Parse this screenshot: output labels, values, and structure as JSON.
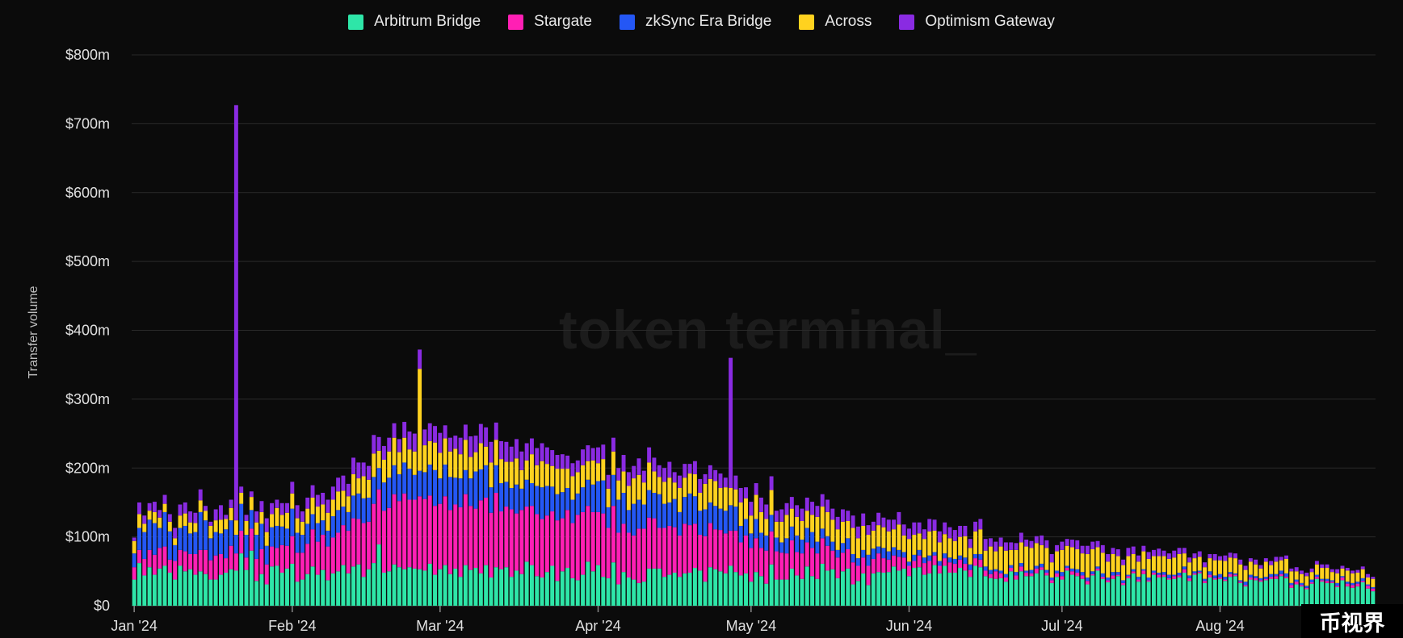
{
  "chart_data": {
    "type": "bar",
    "stacked": true,
    "ylabel": "Transfer volume",
    "ylim": [
      0,
      800
    ],
    "y_ticks": [
      "$0",
      "$100m",
      "$200m",
      "$300m",
      "$400m",
      "$500m",
      "$600m",
      "$700m",
      "$800m"
    ],
    "x_ticks": [
      "Jan '24",
      "Feb '24",
      "Mar '24",
      "Apr '24",
      "May '24",
      "Jun '24",
      "Jul '24",
      "Aug '24"
    ],
    "x_range": [
      "2024-01-01",
      "2024-08-31"
    ],
    "units": "USD millions",
    "grid": true,
    "legend_position": "top-center",
    "series": [
      {
        "name": "Arbitrum Bridge",
        "color": "#2ee6a8",
        "values": [
          38,
          62,
          44,
          56,
          45,
          54,
          58,
          48,
          38,
          58,
          50,
          53,
          45,
          50,
          46,
          38,
          38,
          45,
          48,
          53,
          51,
          76,
          52,
          80,
          36,
          46,
          31,
          57,
          58,
          48,
          54,
          61,
          35,
          38,
          46,
          57,
          45,
          52,
          37,
          47,
          50,
          59,
          47,
          57,
          60,
          42,
          53,
          62,
          89,
          48,
          50,
          60,
          56,
          53,
          56,
          54,
          53,
          51,
          61,
          45,
          53,
          59,
          46,
          54,
          42,
          59,
          52,
          55,
          47,
          59,
          41,
          56,
          53,
          56,
          42,
          51,
          46,
          64,
          59,
          43,
          41,
          49,
          58,
          36,
          50,
          55,
          40,
          37,
          45,
          64,
          50,
          59,
          42,
          40,
          63,
          31,
          49,
          41,
          38,
          33,
          35,
          54,
          54,
          54,
          42,
          45,
          48,
          42,
          47,
          48,
          55,
          51,
          35,
          56,
          53,
          50,
          47,
          58,
          49,
          44,
          47,
          35,
          49,
          43,
          32,
          60,
          38,
          38,
          38,
          54,
          44,
          39,
          57,
          43,
          39,
          61,
          51,
          53,
          40,
          50,
          54,
          31,
          36,
          47,
          30,
          47,
          49,
          48,
          49,
          57,
          51,
          54,
          43,
          55,
          56,
          45,
          47,
          59,
          47,
          58,
          48,
          48,
          55,
          51,
          42,
          58,
          56,
          43,
          40,
          39,
          40,
          35,
          50,
          38,
          50,
          43,
          43,
          47,
          52,
          44,
          33,
          42,
          38,
          51,
          45,
          43,
          39,
          31,
          44,
          51,
          39,
          34,
          39,
          43,
          30,
          40,
          47,
          35,
          46,
          35,
          45,
          41,
          42,
          38,
          39,
          41,
          48,
          36,
          45,
          47,
          33,
          41,
          38,
          39,
          36,
          42,
          43,
          33,
          28,
          38,
          37,
          35,
          37,
          39,
          39,
          43,
          40,
          26,
          31,
          28,
          24,
          32,
          39,
          35,
          33,
          33,
          27,
          37,
          28,
          26,
          28,
          34,
          25,
          21
        ]
      },
      {
        "name": "Stargate",
        "color": "#ff1fb4",
        "values": [
          18,
          19,
          24,
          25,
          29,
          30,
          28,
          19,
          27,
          23,
          29,
          22,
          30,
          31,
          35,
          28,
          35,
          30,
          21,
          34,
          25,
          33,
          18,
          32,
          32,
          36,
          29,
          29,
          26,
          40,
          33,
          40,
          42,
          39,
          44,
          54,
          48,
          51,
          49,
          52,
          56,
          58,
          62,
          70,
          66,
          78,
          69,
          86,
          80,
          90,
          92,
          102,
          96,
          110,
          98,
          100,
          106,
          104,
          99,
          100,
          95,
          100,
          93,
          93,
          101,
          103,
          93,
          86,
          106,
          98,
          94,
          108,
          84,
          88,
          98,
          83,
          93,
          80,
          86,
          90,
          85,
          82,
          79,
          88,
          77,
          84,
          80,
          95,
          91,
          81,
          86,
          77,
          92,
          73,
          82,
          75,
          70,
          65,
          64,
          79,
          77,
          74,
          73,
          59,
          71,
          71,
          66,
          60,
          72,
          69,
          64,
          52,
          66,
          64,
          58,
          60,
          58,
          51,
          60,
          48,
          55,
          49,
          49,
          41,
          48,
          48,
          41,
          39,
          38,
          41,
          34,
          37,
          35,
          41,
          37,
          37,
          36,
          27,
          30,
          27,
          28,
          32,
          22,
          23,
          28,
          21,
          27,
          21,
          18,
          16,
          20,
          16,
          15,
          10,
          17,
          17,
          18,
          14,
          11,
          11,
          15,
          13,
          12,
          10,
          10,
          11,
          11,
          8,
          6,
          11,
          7,
          6,
          5,
          6,
          7,
          5,
          4,
          7,
          4,
          4,
          4,
          5,
          5,
          4,
          5,
          5,
          5,
          5,
          2,
          3,
          3,
          3,
          5,
          2,
          3,
          3,
          3,
          3,
          5,
          2,
          3,
          4,
          3,
          2,
          4,
          3,
          5,
          4,
          2,
          2,
          3,
          4,
          2,
          2,
          2,
          4,
          2,
          2,
          2,
          3,
          3,
          2,
          2,
          3,
          4,
          3,
          2,
          4,
          4,
          2,
          2,
          2,
          3,
          2,
          3,
          2,
          2,
          4,
          4,
          4,
          4,
          2,
          4,
          4
        ]
      },
      {
        "name": "zkSync Era Bridge",
        "color": "#2457f5",
        "values": [
          20,
          32,
          39,
          44,
          46,
          29,
          50,
          41,
          23,
          32,
          37,
          30,
          32,
          55,
          43,
          32,
          34,
          30,
          42,
          37,
          27,
          39,
          33,
          27,
          35,
          37,
          27,
          28,
          32,
          27,
          25,
          40,
          29,
          26,
          29,
          22,
          27,
          21,
          23,
          31,
          33,
          27,
          27,
          33,
          37,
          36,
          35,
          39,
          31,
          41,
          44,
          42,
          39,
          45,
          45,
          36,
          37,
          39,
          45,
          52,
          37,
          46,
          48,
          39,
          42,
          35,
          40,
          54,
          45,
          47,
          37,
          40,
          41,
          36,
          31,
          42,
          31,
          39,
          33,
          41,
          46,
          43,
          36,
          38,
          38,
          32,
          34,
          31,
          36,
          38,
          40,
          45,
          48,
          30,
          45,
          48,
          45,
          33,
          46,
          42,
          35,
          40,
          37,
          49,
          35,
          34,
          41,
          34,
          39,
          46,
          40,
          35,
          39,
          30,
          34,
          31,
          33,
          37,
          35,
          24,
          24,
          21,
          28,
          22,
          22,
          24,
          20,
          15,
          22,
          20,
          24,
          20,
          21,
          23,
          17,
          14,
          14,
          13,
          11,
          14,
          16,
          12,
          11,
          11,
          16,
          15,
          10,
          15,
          12,
          12,
          10,
          8,
          6,
          9,
          8,
          8,
          8,
          5,
          7,
          7,
          7,
          7,
          6,
          9,
          8,
          6,
          8,
          6,
          6,
          3,
          4,
          5,
          4,
          5,
          5,
          3,
          5,
          4,
          5,
          4,
          4,
          4,
          6,
          3,
          4,
          5,
          5,
          5,
          4,
          3,
          5,
          4,
          5,
          4,
          4,
          2,
          3,
          4,
          2,
          4,
          3,
          3,
          4,
          5,
          2,
          4,
          4,
          4,
          3,
          2,
          3,
          5,
          4,
          5,
          4,
          3,
          2,
          2,
          5,
          4,
          3,
          3,
          3,
          4,
          3,
          5,
          5,
          3,
          3,
          3,
          3,
          4,
          3,
          2,
          3,
          2,
          4,
          2,
          3,
          3,
          3,
          4,
          2,
          2
        ]
      },
      {
        "name": "Across",
        "color": "#ffd21f",
        "values": [
          18,
          20,
          12,
          13,
          16,
          15,
          12,
          14,
          10,
          18,
          18,
          16,
          13,
          17,
          14,
          18,
          17,
          20,
          15,
          18,
          21,
          16,
          20,
          19,
          18,
          17,
          20,
          19,
          26,
          17,
          23,
          22,
          21,
          19,
          22,
          24,
          24,
          23,
          26,
          24,
          27,
          23,
          23,
          31,
          22,
          32,
          26,
          34,
          25,
          33,
          38,
          40,
          32,
          36,
          28,
          34,
          40,
          39,
          34,
          40,
          37,
          38,
          37,
          42,
          35,
          44,
          31,
          28,
          38,
          27,
          36,
          37,
          35,
          29,
          38,
          38,
          27,
          28,
          42,
          30,
          38,
          32,
          30,
          37,
          34,
          28,
          34,
          31,
          32,
          27,
          35,
          26,
          31,
          27,
          34,
          28,
          31,
          35,
          37,
          36,
          32,
          40,
          31,
          25,
          32,
          36,
          24,
          35,
          28,
          29,
          32,
          26,
          37,
          34,
          36,
          30,
          34,
          25,
          25,
          34,
          30,
          26,
          35,
          30,
          24,
          36,
          23,
          30,
          34,
          26,
          27,
          27,
          25,
          25,
          36,
          32,
          35,
          32,
          30,
          31,
          25,
          38,
          29,
          35,
          29,
          26,
          31,
          30,
          29,
          26,
          37,
          24,
          33,
          29,
          24,
          27,
          35,
          31,
          27,
          28,
          28,
          26,
          27,
          31,
          24,
          33,
          36,
          23,
          34,
          26,
          35,
          34,
          22,
          32,
          30,
          35,
          32,
          33,
          27,
          32,
          22,
          28,
          32,
          29,
          31,
          29,
          27,
          34,
          32,
          28,
          30,
          23,
          26,
          23,
          22,
          27,
          22,
          22,
          26,
          27,
          21,
          24,
          23,
          23,
          25,
          27,
          19,
          19,
          19,
          20,
          17,
          19,
          22,
          20,
          23,
          21,
          22,
          23,
          17,
          19,
          17,
          14,
          22,
          13,
          18,
          15,
          21,
          17,
          12,
          13,
          14,
          11,
          15,
          16,
          16,
          12,
          14,
          11,
          16,
          14,
          13,
          13,
          10,
          12
        ]
      },
      {
        "name": "Optimism Gateway",
        "color": "#8a2be2",
        "values": [
          5,
          17,
          12,
          11,
          15,
          11,
          13,
          11,
          15,
          16,
          16,
          16,
          15,
          16,
          7,
          6,
          16,
          21,
          6,
          12,
          7,
          9,
          9,
          8,
          16,
          16,
          20,
          16,
          12,
          17,
          14,
          17,
          19,
          15,
          16,
          18,
          17,
          17,
          19,
          19,
          20,
          22,
          18,
          24,
          23,
          20,
          20,
          27,
          20,
          20,
          20,
          21,
          19,
          23,
          26,
          26,
          28,
          23,
          26,
          24,
          29,
          19,
          20,
          19,
          24,
          22,
          30,
          24,
          28,
          28,
          30,
          25,
          26,
          29,
          22,
          28,
          27,
          25,
          23,
          25,
          26,
          24,
          23,
          20,
          21,
          19,
          19,
          17,
          23,
          23,
          18,
          23,
          21,
          20,
          20,
          18,
          24,
          20,
          18,
          24,
          17,
          22,
          20,
          17,
          20,
          23,
          15,
          18,
          20,
          14,
          19,
          20,
          14,
          20,
          16,
          21,
          14,
          17,
          20,
          21,
          16,
          20,
          17,
          21,
          21,
          20,
          16,
          18,
          17,
          17,
          17,
          18,
          19,
          19,
          16,
          18,
          18,
          16,
          18,
          18,
          15,
          18,
          17,
          18,
          14,
          13,
          18,
          14,
          17,
          14,
          18,
          16,
          15,
          18,
          16,
          14,
          18,
          16,
          16,
          17,
          16,
          16,
          16,
          15,
          13,
          14,
          15,
          17,
          12,
          14,
          13,
          12,
          11,
          10,
          14,
          10,
          10,
          10,
          14,
          11,
          12,
          9,
          12,
          10,
          11,
          13,
          11,
          12,
          11,
          9,
          11,
          11,
          9,
          10,
          8,
          12,
          11,
          9,
          8,
          10,
          9,
          11,
          8,
          8,
          10,
          9,
          8,
          7,
          7,
          8,
          7,
          6,
          9,
          6,
          8,
          7,
          7,
          7,
          6,
          5,
          7,
          5,
          5,
          6,
          7,
          5,
          5,
          4,
          6,
          5,
          5,
          5,
          5,
          5,
          5,
          4,
          6,
          4,
          4,
          4,
          4,
          4,
          5,
          3
        ]
      }
    ],
    "spikes": [
      {
        "date": "2024-01-21",
        "total": 727,
        "series": "Optimism Gateway"
      },
      {
        "date": "2024-02-26",
        "total": 372,
        "series": "Across"
      },
      {
        "date": "2024-04-27",
        "total": 360,
        "series": "Optimism Gateway"
      }
    ]
  },
  "watermark": "token terminal_",
  "corner_badge": "币视界"
}
